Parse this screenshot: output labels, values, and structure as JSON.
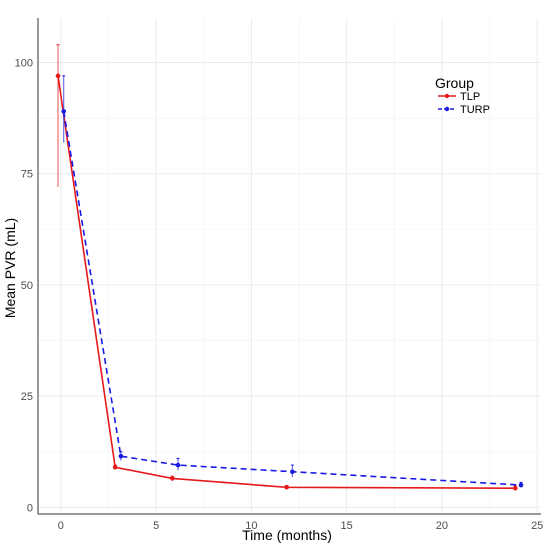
{
  "chart_data": {
    "type": "line",
    "xlabel": "Time (months)",
    "ylabel": "Mean PVR (mL)",
    "xlim": [
      -1.2,
      25.2
    ],
    "ylim": [
      -1.5,
      110
    ],
    "x_ticks": [
      0,
      5,
      10,
      15,
      20,
      25
    ],
    "y_ticks": [
      0,
      25,
      50,
      75,
      100
    ],
    "grid": true,
    "legend": {
      "title": "Group",
      "position": "top-right"
    },
    "series": [
      {
        "name": "TLP",
        "color": "#e41a1c",
        "line_style": "solid",
        "x_offset": -0.15,
        "points": [
          {
            "x": 0,
            "y": 97,
            "err_low": 72,
            "err_high": 104
          },
          {
            "x": 3,
            "y": 9,
            "err_low": 8.5,
            "err_high": 9.5
          },
          {
            "x": 6,
            "y": 6.5,
            "err_low": 6.0,
            "err_high": 7.0
          },
          {
            "x": 12,
            "y": 4.5,
            "err_low": 4.1,
            "err_high": 4.9
          },
          {
            "x": 24,
            "y": 4.3,
            "err_low": 3.9,
            "err_high": 4.8
          }
        ]
      },
      {
        "name": "TURP",
        "color": "#1a1ae6",
        "line_style": "dashed",
        "x_offset": 0.15,
        "points": [
          {
            "x": 0,
            "y": 89,
            "err_low": 82,
            "err_high": 97
          },
          {
            "x": 3,
            "y": 11.5,
            "err_low": 10.5,
            "err_high": 12.5
          },
          {
            "x": 6,
            "y": 9.5,
            "err_low": 8.3,
            "err_high": 11.0
          },
          {
            "x": 12,
            "y": 8,
            "err_low": 6.8,
            "err_high": 9.5
          },
          {
            "x": 24,
            "y": 5,
            "err_low": 4.5,
            "err_high": 5.6
          }
        ]
      }
    ]
  }
}
